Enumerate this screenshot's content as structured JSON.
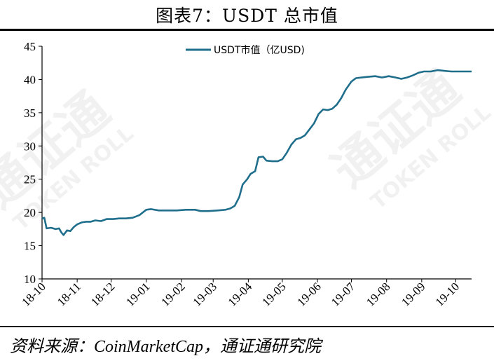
{
  "figure": {
    "title": "图表7：USDT 总市值",
    "source_prefix": "资料来源：",
    "source_value": "CoinMarketCap，通证通研究院"
  },
  "watermark": {
    "brand": "通证通",
    "brand_en": "TOKEN ROLL"
  },
  "colors": {
    "series": "#1f6e8c",
    "axis": "#000000"
  },
  "chart_data": {
    "type": "line",
    "title": "",
    "xlabel": "",
    "ylabel": "",
    "ylim": [
      10,
      45
    ],
    "yticks": [
      10,
      15,
      20,
      25,
      30,
      35,
      40,
      45
    ],
    "grid": false,
    "legend_position": "top-center",
    "x_range": [
      "2018-10-01",
      "2019-10-15"
    ],
    "xtick_labels": [
      "18-10",
      "18-11",
      "18-12",
      "19-01",
      "19-02",
      "19-03",
      "19-04",
      "19-05",
      "19-06",
      "19-07",
      "19-08",
      "19-09",
      "19-10"
    ],
    "series": [
      {
        "name": "USDT市值（亿USD)",
        "color": "#1f6e8c",
        "points": [
          [
            "2018-10-01",
            19.1
          ],
          [
            "2018-10-03",
            19.2
          ],
          [
            "2018-10-05",
            17.6
          ],
          [
            "2018-10-09",
            17.7
          ],
          [
            "2018-10-13",
            17.5
          ],
          [
            "2018-10-16",
            17.6
          ],
          [
            "2018-10-18",
            17.0
          ],
          [
            "2018-10-20",
            16.6
          ],
          [
            "2018-10-23",
            17.3
          ],
          [
            "2018-10-26",
            17.2
          ],
          [
            "2018-10-29",
            17.8
          ],
          [
            "2018-11-01",
            18.2
          ],
          [
            "2018-11-05",
            18.5
          ],
          [
            "2018-11-09",
            18.6
          ],
          [
            "2018-11-13",
            18.6
          ],
          [
            "2018-11-17",
            18.8
          ],
          [
            "2018-11-22",
            18.7
          ],
          [
            "2018-11-27",
            19.0
          ],
          [
            "2018-12-03",
            19.0
          ],
          [
            "2018-12-08",
            19.1
          ],
          [
            "2018-12-14",
            19.1
          ],
          [
            "2018-12-20",
            19.2
          ],
          [
            "2018-12-26",
            19.6
          ],
          [
            "2019-01-01",
            20.4
          ],
          [
            "2019-01-05",
            20.5
          ],
          [
            "2019-01-12",
            20.3
          ],
          [
            "2019-01-20",
            20.3
          ],
          [
            "2019-01-28",
            20.3
          ],
          [
            "2019-02-05",
            20.4
          ],
          [
            "2019-02-13",
            20.4
          ],
          [
            "2019-02-18",
            20.2
          ],
          [
            "2019-02-25",
            20.2
          ],
          [
            "2019-03-05",
            20.3
          ],
          [
            "2019-03-12",
            20.4
          ],
          [
            "2019-03-16",
            20.6
          ],
          [
            "2019-03-20",
            21.0
          ],
          [
            "2019-03-24",
            22.3
          ],
          [
            "2019-03-27",
            24.2
          ],
          [
            "2019-03-31",
            25.0
          ],
          [
            "2019-04-03",
            25.8
          ],
          [
            "2019-04-07",
            26.2
          ],
          [
            "2019-04-10",
            28.3
          ],
          [
            "2019-04-14",
            28.4
          ],
          [
            "2019-04-17",
            27.8
          ],
          [
            "2019-04-22",
            27.7
          ],
          [
            "2019-04-27",
            27.7
          ],
          [
            "2019-05-01",
            28.0
          ],
          [
            "2019-05-05",
            29.0
          ],
          [
            "2019-05-09",
            30.2
          ],
          [
            "2019-05-13",
            31.0
          ],
          [
            "2019-05-17",
            31.2
          ],
          [
            "2019-05-21",
            31.6
          ],
          [
            "2019-05-25",
            32.5
          ],
          [
            "2019-05-29",
            33.4
          ],
          [
            "2019-06-02",
            34.8
          ],
          [
            "2019-06-06",
            35.5
          ],
          [
            "2019-06-10",
            35.4
          ],
          [
            "2019-06-14",
            35.6
          ],
          [
            "2019-06-18",
            36.2
          ],
          [
            "2019-06-22",
            37.2
          ],
          [
            "2019-06-26",
            38.5
          ],
          [
            "2019-07-01",
            39.7
          ],
          [
            "2019-07-05",
            40.2
          ],
          [
            "2019-07-10",
            40.3
          ],
          [
            "2019-07-16",
            40.4
          ],
          [
            "2019-07-22",
            40.5
          ],
          [
            "2019-07-28",
            40.3
          ],
          [
            "2019-08-03",
            40.5
          ],
          [
            "2019-08-09",
            40.3
          ],
          [
            "2019-08-14",
            40.1
          ],
          [
            "2019-08-19",
            40.3
          ],
          [
            "2019-08-24",
            40.6
          ],
          [
            "2019-08-29",
            41.0
          ],
          [
            "2019-09-03",
            41.2
          ],
          [
            "2019-09-09",
            41.2
          ],
          [
            "2019-09-15",
            41.4
          ],
          [
            "2019-09-21",
            41.3
          ],
          [
            "2019-09-27",
            41.2
          ],
          [
            "2019-10-03",
            41.2
          ],
          [
            "2019-10-09",
            41.2
          ],
          [
            "2019-10-15",
            41.2
          ]
        ]
      }
    ]
  }
}
